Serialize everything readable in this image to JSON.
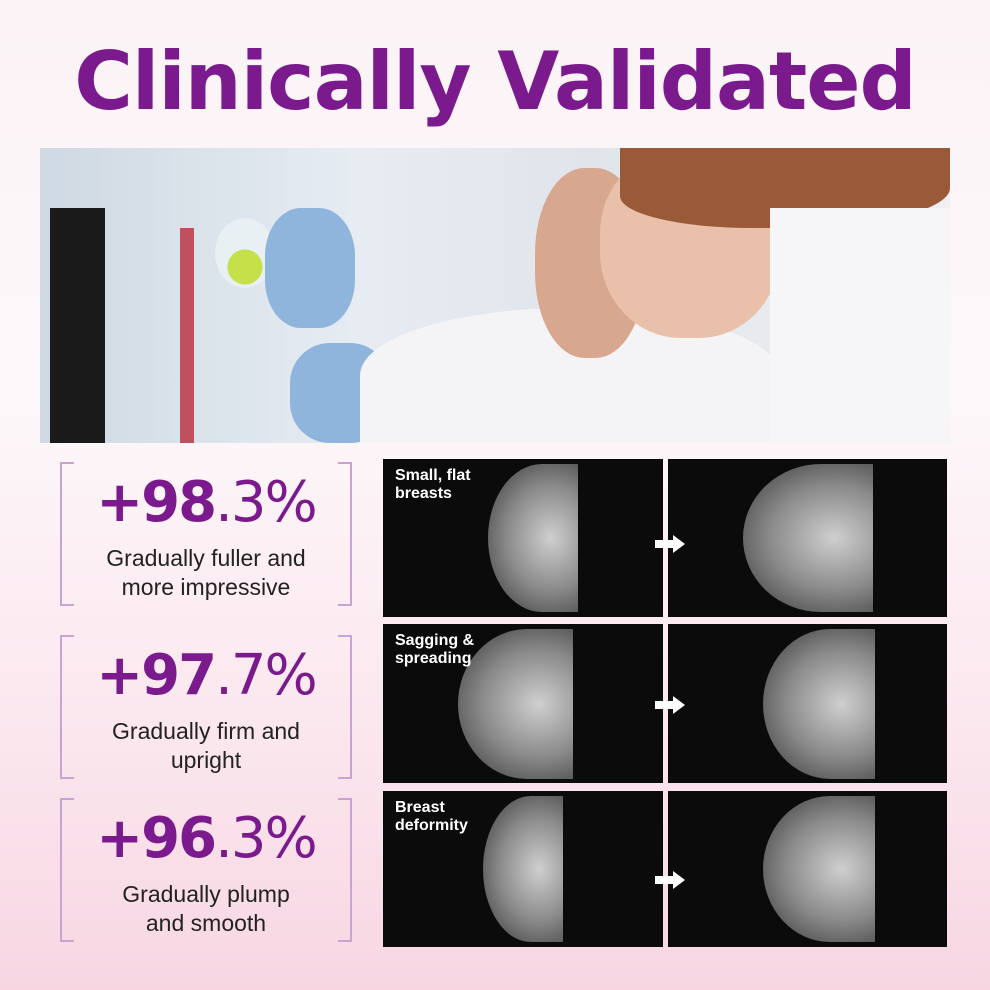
{
  "title": "Clinically Validated",
  "stats": [
    {
      "main": "+98",
      "decimal": ".3%",
      "description_line1": "Gradually fuller and",
      "description_line2": "more impressive"
    },
    {
      "main": "+97",
      "decimal": ".7%",
      "description_line1": "Gradually firm and",
      "description_line2": "upright"
    },
    {
      "main": "+96",
      "decimal": ".3%",
      "description_line1": "Gradually plump",
      "description_line2": "and smooth"
    }
  ],
  "comparisons": [
    {
      "label_line1": "Small, flat",
      "label_line2": "breasts"
    },
    {
      "label_line1": "Sagging &",
      "label_line2": "spreading"
    },
    {
      "label_line1": "Breast",
      "label_line2": "deformity"
    }
  ],
  "colors": {
    "accent": "#7a1a8c",
    "bracket": "#c9a3d3"
  }
}
